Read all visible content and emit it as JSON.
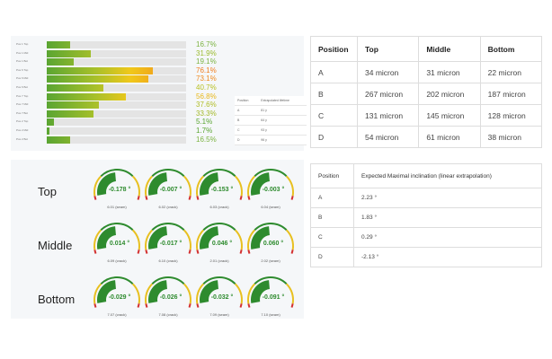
{
  "bar_panel": {
    "rows": [
      {
        "label": "Pos 1 Top",
        "value": "16.7%",
        "pct": 16.7,
        "color": "#7cb342"
      },
      {
        "label": "Pos 1 Mid",
        "value": "31.9%",
        "pct": 31.9,
        "color": "#9bbb2e"
      },
      {
        "label": "Pos 1 Bot",
        "value": "19.1%",
        "pct": 19.1,
        "color": "#7cb342"
      },
      {
        "label": "Pos 6 Top",
        "value": "76.1%",
        "pct": 76.1,
        "color": "#ef7d1e"
      },
      {
        "label": "Pos 6 Mid",
        "value": "73.1%",
        "pct": 73.1,
        "color": "#ef8a1e"
      },
      {
        "label": "Pos 6 Bot",
        "value": "40.7%",
        "pct": 40.7,
        "color": "#b8c024"
      },
      {
        "label": "Pos 7 Top",
        "value": "56.8%",
        "pct": 56.8,
        "color": "#e8b81a"
      },
      {
        "label": "Pos 7 Mid",
        "value": "37.6%",
        "pct": 37.6,
        "color": "#b0bd26"
      },
      {
        "label": "Pos 7 Bot",
        "value": "33.3%",
        "pct": 33.3,
        "color": "#a4ba2a"
      },
      {
        "label": "Pos 2 Top",
        "value": "5.1%",
        "pct": 5.1,
        "color": "#5aa532"
      },
      {
        "label": "Pos 2 Mid",
        "value": "1.7%",
        "pct": 1.7,
        "color": "#5aa532"
      },
      {
        "label": "Pos 2 Bot",
        "value": "16.5%",
        "pct": 16.5,
        "color": "#7cb342"
      }
    ],
    "lifetime_table": {
      "headers": [
        "Position",
        "Extrapolated lifetime"
      ],
      "rows": [
        [
          "A",
          "81 y"
        ],
        [
          "B",
          "64 y"
        ],
        [
          "C",
          "93 y"
        ],
        [
          "D",
          "96 y"
        ]
      ]
    }
  },
  "gauge_panel": {
    "row_labels": [
      "Top",
      "Middle",
      "Bottom"
    ],
    "gauges": [
      [
        {
          "value": "-0.178 °",
          "caption": "6.01 (seam)"
        },
        {
          "value": "-0.007 °",
          "caption": "6.02 (crack)"
        },
        {
          "value": "-0.153 °",
          "caption": "6.03 (crack)"
        },
        {
          "value": "-0.003 °",
          "caption": "6.04 (seam)"
        }
      ],
      [
        {
          "value": "0.014 °",
          "caption": "6.09 (crack)"
        },
        {
          "value": "-0.017 °",
          "caption": "6.10 (crack)"
        },
        {
          "value": "0.046 °",
          "caption": "2.01 (crack)"
        },
        {
          "value": "0.060 °",
          "caption": "2.02 (seam)"
        }
      ],
      [
        {
          "value": "-0.029 °",
          "caption": "7.07 (crack)"
        },
        {
          "value": "-0.026 °",
          "caption": "7.08 (crack)"
        },
        {
          "value": "-0.032 °",
          "caption": "7.09 (seam)"
        },
        {
          "value": "-0.091 °",
          "caption": "7.10 (seam)"
        }
      ]
    ]
  },
  "micron_table": {
    "headers": [
      "Position",
      "Top",
      "Middle",
      "Bottom"
    ],
    "rows": [
      [
        "A",
        "34 micron",
        "31 micron",
        "22 micron"
      ],
      [
        "B",
        "267 micron",
        "202 micron",
        "187 micron"
      ],
      [
        "C",
        "131 micron",
        "145 micron",
        "128 micron"
      ],
      [
        "D",
        "54 micron",
        "61 micron",
        "38 micron"
      ]
    ]
  },
  "inclination_table": {
    "headers": [
      "Position",
      "Expected Maximal inclination (linear extrapolation)"
    ],
    "rows": [
      [
        "A",
        "2.23 °"
      ],
      [
        "B",
        "1.83 °"
      ],
      [
        "C",
        "0.29 °"
      ],
      [
        "D",
        "-2.13 °"
      ]
    ]
  }
}
